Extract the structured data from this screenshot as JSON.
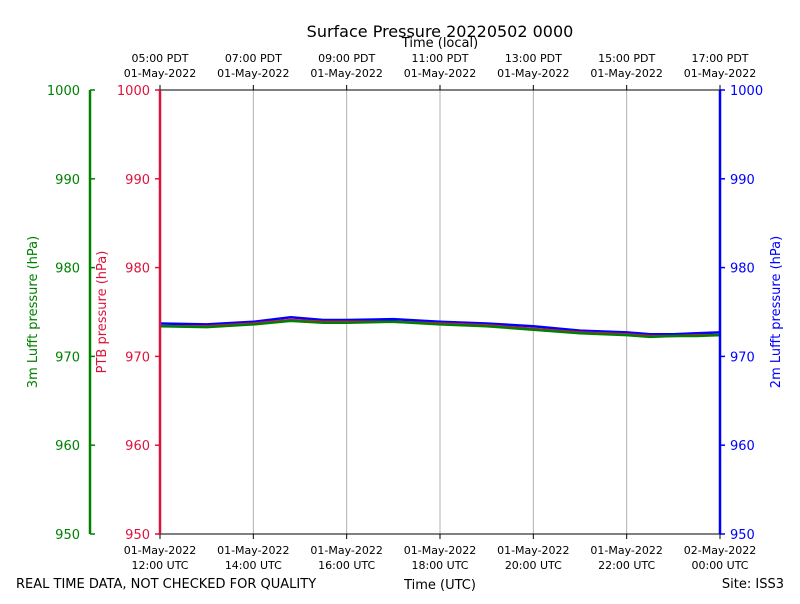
{
  "chart_data": {
    "type": "line",
    "title": "Surface Pressure 20220502 0000",
    "xlabel_bottom": "Time (UTC)",
    "xlabel_top": "Time (local)",
    "ylabel_left_outer": "3m Lufft pressure (hPa)",
    "ylabel_left_inner": "PTB pressure (hPa)",
    "ylabel_right": "2m Lufft pressure (hPa)",
    "ylim": [
      950,
      1000
    ],
    "yticks": [
      "950",
      "960",
      "970",
      "980",
      "990",
      "1000"
    ],
    "xlim_hours": [
      12,
      24
    ],
    "grid": true,
    "bottom_ticks": [
      {
        "hour": 12,
        "date": "01-May-2022",
        "time": "12:00 UTC"
      },
      {
        "hour": 14,
        "date": "01-May-2022",
        "time": "14:00 UTC"
      },
      {
        "hour": 16,
        "date": "01-May-2022",
        "time": "16:00 UTC"
      },
      {
        "hour": 18,
        "date": "01-May-2022",
        "time": "18:00 UTC"
      },
      {
        "hour": 20,
        "date": "01-May-2022",
        "time": "20:00 UTC"
      },
      {
        "hour": 22,
        "date": "01-May-2022",
        "time": "22:00 UTC"
      },
      {
        "hour": 24,
        "date": "02-May-2022",
        "time": "00:00 UTC"
      }
    ],
    "top_ticks": [
      {
        "hour": 12,
        "time": "05:00 PDT",
        "date": "01-May-2022"
      },
      {
        "hour": 14,
        "time": "07:00 PDT",
        "date": "01-May-2022"
      },
      {
        "hour": 16,
        "time": "09:00 PDT",
        "date": "01-May-2022"
      },
      {
        "hour": 18,
        "time": "11:00 PDT",
        "date": "01-May-2022"
      },
      {
        "hour": 20,
        "time": "13:00 PDT",
        "date": "01-May-2022"
      },
      {
        "hour": 22,
        "time": "15:00 PDT",
        "date": "01-May-2022"
      },
      {
        "hour": 24,
        "time": "17:00 PDT",
        "date": "01-May-2022"
      }
    ],
    "series": [
      {
        "name": "2m Lufft pressure",
        "color": "#0000ff",
        "hours": [
          12,
          13,
          14,
          14.8,
          15.5,
          16,
          17,
          18,
          19,
          20,
          21,
          22,
          22.5,
          23,
          23.5,
          24
        ],
        "values": [
          973.7,
          973.6,
          973.9,
          974.4,
          974.1,
          974.1,
          974.2,
          973.9,
          973.7,
          973.4,
          972.9,
          972.7,
          972.5,
          972.5,
          972.6,
          972.7
        ]
      },
      {
        "name": "PTB pressure",
        "color": "#dc143c",
        "hours": [
          12,
          13,
          14,
          14.8,
          15.5,
          16,
          17,
          18,
          19,
          20,
          21,
          22,
          22.5,
          23,
          23.5,
          24
        ],
        "values": [
          973.4,
          973.4,
          973.7,
          974.1,
          973.9,
          973.9,
          973.9,
          973.7,
          973.5,
          973.1,
          972.7,
          972.5,
          972.3,
          972.3,
          972.4,
          972.4
        ]
      },
      {
        "name": "3m Lufft pressure",
        "color": "#008000",
        "hours": [
          12,
          13,
          14,
          14.8,
          15.5,
          16,
          17,
          18,
          19,
          20,
          21,
          22,
          22.5,
          23,
          23.5,
          24
        ],
        "values": [
          973.4,
          973.3,
          973.6,
          974.0,
          973.8,
          973.8,
          973.9,
          973.6,
          973.4,
          973.0,
          972.6,
          972.4,
          972.2,
          972.3,
          972.3,
          972.4
        ]
      }
    ]
  },
  "footer": {
    "disclaimer": "REAL TIME DATA, NOT CHECKED FOR QUALITY",
    "site": "Site: ISS3"
  },
  "colors": {
    "left_outer_axis": "#008000",
    "left_inner_axis": "#dc143c",
    "right_axis": "#0000ff",
    "grid": "#b0b0b0"
  }
}
